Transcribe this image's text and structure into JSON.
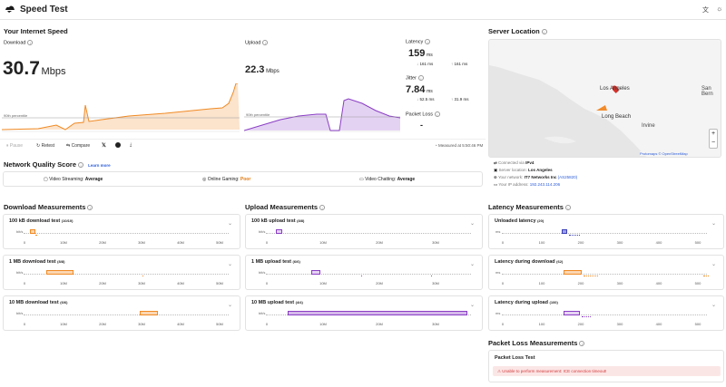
{
  "app": {
    "title": "Speed Test"
  },
  "speed": {
    "section_title": "Your Internet Speed",
    "download": {
      "label": "Download",
      "value": "30.7",
      "unit": "Mbps",
      "percentile": "90th percentile"
    },
    "upload": {
      "label": "Upload",
      "value": "22.3",
      "unit": "Mbps",
      "percentile": "90th percentile"
    },
    "latency": {
      "label": "Latency",
      "value": "159",
      "unit": "ms",
      "down": "161",
      "down_unit": "ms",
      "up": "161",
      "up_unit": "ms"
    },
    "jitter": {
      "label": "Jitter",
      "value": "7.84",
      "unit": "ms",
      "down": "52.5",
      "down_unit": "ms",
      "up": "31.9",
      "up_unit": "ms"
    },
    "packet_loss": {
      "label": "Packet Loss",
      "value": "-"
    },
    "measured_at": "Measured at 5:50:46 PM"
  },
  "actions": {
    "pause": "Pause",
    "retest": "Retest",
    "compare": "Compare"
  },
  "server": {
    "title": "Server Location",
    "connected_via_label": "Connected via",
    "connected_via": "IPv4",
    "server_location_label": "Server location:",
    "server_location": "Los Angeles",
    "network_label": "Your network:",
    "network": "IT7 Networks Inc",
    "asn": "(AS25820)",
    "ip_label": "Your IP address:",
    "ip": "192.243.114.206",
    "map_labels": {
      "la": "Los Angeles",
      "lb": "Long Beach",
      "irvine": "Irvine",
      "sanbern": "San Bern",
      "credit": "Protomaps © OpenStreetMap"
    }
  },
  "quality": {
    "title": "Network Quality Score",
    "learn_more": "Learn more",
    "streaming_label": "Video Streaming:",
    "streaming_value": "Average",
    "gaming_label": "Online Gaming:",
    "gaming_value": "Poor",
    "chatting_label": "Video Chatting:",
    "chatting_value": "Average"
  },
  "download_measurements": {
    "title": "Download Measurements",
    "tests": [
      {
        "name": "100 kB download test",
        "count": "(10/10)"
      },
      {
        "name": "1 MB download test",
        "count": "(8/8)"
      },
      {
        "name": "10 MB download test",
        "count": "(6/6)"
      }
    ],
    "ylabel": "bit/s",
    "ticks": [
      "0",
      "10M",
      "20M",
      "30M",
      "40M",
      "50M"
    ]
  },
  "upload_measurements": {
    "title": "Upload Measurements",
    "tests": [
      {
        "name": "100 kB upload test",
        "count": "(8/8)"
      },
      {
        "name": "1 MB upload test",
        "count": "(6/6)"
      },
      {
        "name": "10 MB upload test",
        "count": "(4/4)"
      }
    ],
    "ylabel": "bit/s",
    "ticks": [
      "0",
      "10M",
      "20M",
      "30M"
    ]
  },
  "latency_measurements": {
    "title": "Latency Measurements",
    "tests": [
      {
        "name": "Unloaded latency",
        "count": "(20)"
      },
      {
        "name": "Latency during download",
        "count": "(62)"
      },
      {
        "name": "Latency during upload",
        "count": "(100)"
      }
    ],
    "ylabel": "ms",
    "ticks": [
      "0",
      "100",
      "200",
      "300",
      "400",
      "500"
    ]
  },
  "packet_loss_measurements": {
    "title": "Packet Loss Measurements",
    "test_title": "Packet Loss Test",
    "error": "Unable to perform measurement: ICE connection timeout!"
  },
  "colors": {
    "download": "#f08a24",
    "upload": "#8a3ec4",
    "latency_unloaded": "#3b3fb5",
    "error": "#d63b3b",
    "link": "#2a5bd7",
    "poor": "#e07b14"
  }
}
